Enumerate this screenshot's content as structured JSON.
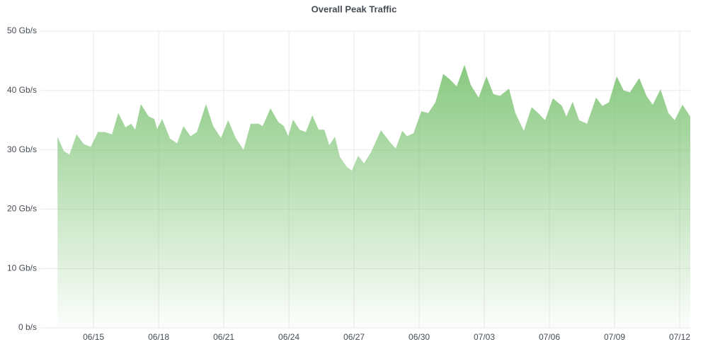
{
  "chart_data": {
    "type": "area",
    "title": "Overall Peak Traffic",
    "series": [
      {
        "color": "#73bf69",
        "x": [
          164.34,
          164.63,
          164.89,
          165.22,
          165.54,
          165.87,
          166.2,
          166.52,
          166.85,
          167.14,
          167.47,
          167.73,
          167.92,
          168.18,
          168.54,
          168.8,
          168.93,
          169.16,
          169.52,
          169.85,
          170.14,
          170.47,
          170.76,
          171.18,
          171.51,
          171.87,
          172.2,
          172.55,
          172.91,
          173.24,
          173.6,
          173.79,
          174.15,
          174.51,
          174.77,
          174.97,
          175.19,
          175.49,
          175.78,
          176.08,
          176.37,
          176.63,
          176.86,
          177.12,
          177.35,
          177.67,
          177.9,
          178.19,
          178.46,
          178.78,
          179.24,
          179.63,
          179.92,
          180.22,
          180.44,
          180.74,
          181.1,
          181.42,
          181.75,
          182.11,
          182.4,
          182.73,
          183.09,
          183.38,
          183.74,
          184.1,
          184.42,
          184.72,
          185.14,
          185.43,
          185.82,
          186.18,
          186.48,
          186.8,
          187.16,
          187.58,
          187.78,
          188.07,
          188.37,
          188.73,
          189.15,
          189.44,
          189.74,
          190.1,
          190.42,
          190.71,
          191.14,
          191.47,
          191.76,
          192.12,
          192.48,
          192.77,
          193.13,
          193.49
        ],
        "values": [
          32.2,
          29.8,
          29.2,
          32.6,
          31,
          30.5,
          33,
          33,
          32.6,
          36.2,
          33.8,
          34.4,
          33.4,
          37.7,
          35.6,
          35.2,
          33.5,
          35.2,
          31.9,
          31.1,
          34,
          32.3,
          33,
          37.7,
          34,
          32,
          35,
          32,
          30,
          34.4,
          34.4,
          34,
          37,
          34.7,
          34,
          32.3,
          35.1,
          33.4,
          33,
          35.8,
          33.4,
          33.4,
          30.8,
          32.2,
          28.8,
          27.1,
          26.5,
          29,
          27.7,
          29.6,
          33.3,
          31.4,
          30.2,
          33.2,
          32.3,
          32.8,
          36.5,
          36.2,
          38,
          42.8,
          41.9,
          40.7,
          44.3,
          40.9,
          38.8,
          42.4,
          39.4,
          39.1,
          40.3,
          36.2,
          33.2,
          37.2,
          36.2,
          35,
          38.7,
          37.4,
          35.6,
          38.1,
          35,
          34.4,
          38.8,
          37.4,
          38,
          42.4,
          40,
          39.7,
          42.1,
          39.1,
          37.6,
          40.2,
          36.2,
          35,
          37.6,
          35.6
        ]
      }
    ],
    "xlim": [
      163.55,
      193.49
    ],
    "xticks": [
      {
        "value": 166,
        "label": "06/15"
      },
      {
        "value": 169,
        "label": "06/18"
      },
      {
        "value": 172,
        "label": "06/21"
      },
      {
        "value": 175,
        "label": "06/24"
      },
      {
        "value": 178,
        "label": "06/27"
      },
      {
        "value": 181,
        "label": "06/30"
      },
      {
        "value": 184,
        "label": "07/03"
      },
      {
        "value": 187,
        "label": "07/06"
      },
      {
        "value": 190,
        "label": "07/09"
      },
      {
        "value": 193,
        "label": "07/12"
      }
    ],
    "ylim": [
      0,
      50
    ],
    "yticks": [
      {
        "value": 0,
        "label": "0 b/s"
      },
      {
        "value": 10,
        "label": "10 Gb/s"
      },
      {
        "value": 20,
        "label": "20 Gb/s"
      },
      {
        "value": 30,
        "label": "30 Gb/s"
      },
      {
        "value": 40,
        "label": "40 Gb/s"
      },
      {
        "value": 50,
        "label": "50 Gb/s"
      }
    ],
    "grid": true
  }
}
